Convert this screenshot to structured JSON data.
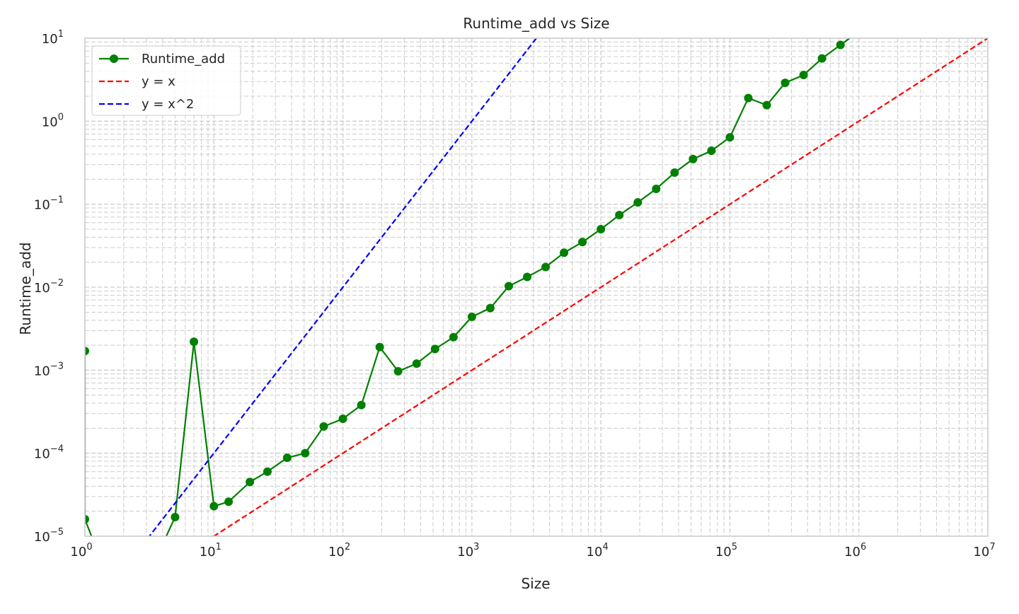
{
  "chart_data": {
    "type": "line",
    "title": "Runtime_add vs Size",
    "xlabel": "Size",
    "ylabel": "Runtime_add",
    "xscale": "log",
    "yscale": "log",
    "xlim": [
      1,
      10000000
    ],
    "ylim": [
      1e-05,
      10
    ],
    "grid": "on (major and minor, dashed)",
    "legend_location": "upper left",
    "x_ticks": [
      {
        "base": "10",
        "exp": "0"
      },
      {
        "base": "10",
        "exp": "1"
      },
      {
        "base": "10",
        "exp": "2"
      },
      {
        "base": "10",
        "exp": "3"
      },
      {
        "base": "10",
        "exp": "4"
      },
      {
        "base": "10",
        "exp": "5"
      },
      {
        "base": "10",
        "exp": "6"
      },
      {
        "base": "10",
        "exp": "7"
      }
    ],
    "y_ticks": [
      {
        "base": "10",
        "exp": "−5"
      },
      {
        "base": "10",
        "exp": "−4"
      },
      {
        "base": "10",
        "exp": "−3"
      },
      {
        "base": "10",
        "exp": "−2"
      },
      {
        "base": "10",
        "exp": "−1"
      },
      {
        "base": "10",
        "exp": "0"
      },
      {
        "base": "10",
        "exp": "1"
      }
    ],
    "series": [
      {
        "name": "Runtime_add",
        "style": "solid line with circle markers",
        "color": "#008000",
        "x": [
          1,
          1,
          2,
          3,
          4,
          5,
          7,
          10,
          13,
          19,
          26,
          37,
          51,
          71,
          100,
          139,
          193,
          268,
          373,
          518,
          720,
          1000,
          1389,
          1931,
          2683,
          3728,
          5179,
          7197,
          10000,
          13895,
          19307,
          26827,
          37276,
          51795,
          71969,
          100000,
          138950,
          193070,
          268270,
          372760,
          517950,
          719690,
          1000000
        ],
        "y": [
          0.0017,
          1.6e-05,
          1e-06,
          3e-06,
          8e-06,
          1.7e-05,
          0.0022,
          2.3e-05,
          2.6e-05,
          4.5e-05,
          6e-05,
          8.8e-05,
          0.0001,
          0.00021,
          0.00026,
          0.00038,
          0.0019,
          0.00097,
          0.0012,
          0.0018,
          0.0025,
          0.0044,
          0.0056,
          0.0103,
          0.0133,
          0.0175,
          0.026,
          0.035,
          0.05,
          0.074,
          0.105,
          0.153,
          0.24,
          0.35,
          0.44,
          0.64,
          1.9,
          1.56,
          2.9,
          3.6,
          5.7,
          8.3,
          12
        ]
      },
      {
        "name": "y = x",
        "style": "dashed",
        "color": "#ff0000",
        "formula": "y = x·10^-6",
        "x": [
          1,
          10000000
        ],
        "y": [
          1e-06,
          10
        ]
      },
      {
        "name": "y = x^2",
        "style": "dashed",
        "color": "#0000ff",
        "formula": "y = x^2·10^-6",
        "x": [
          1,
          3162.28
        ],
        "y": [
          1e-06,
          10
        ]
      }
    ]
  }
}
